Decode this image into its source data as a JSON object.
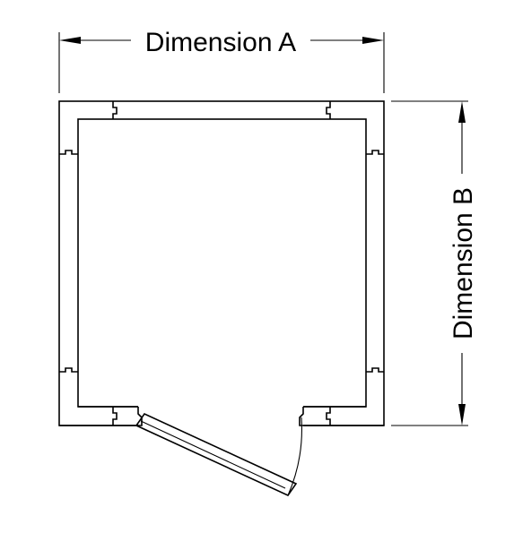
{
  "diagram": {
    "dimension_a_label": "Dimension A",
    "dimension_b_label": "Dimension B"
  }
}
